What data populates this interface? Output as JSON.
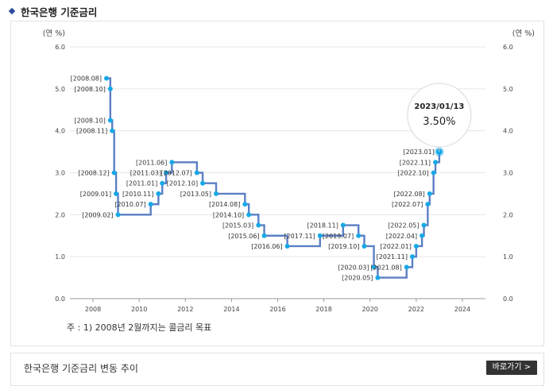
{
  "page": {
    "section_title": "한국은행 기준금리",
    "bottom_title": "한국은행 기준금리 변동 추이",
    "goto_button": "바로가기 >"
  },
  "chart_data": {
    "type": "line",
    "step": true,
    "left_axis_label": "(연 %)",
    "right_axis_label": "(연 %)",
    "ylim": [
      0.0,
      6.0
    ],
    "yticks": [
      "0.0",
      "1.0",
      "2.0",
      "3.0",
      "4.0",
      "5.0",
      "6.0"
    ],
    "xlim": [
      2007,
      2025
    ],
    "xticks": [
      "2008",
      "2010",
      "2012",
      "2014",
      "2016",
      "2018",
      "2020",
      "2022",
      "2024"
    ],
    "footnote": "주 : 1) 2008년 2월까지는 콜금리 목표",
    "series_color": "#5b7fc4",
    "point_color": "#17a9e6",
    "points": [
      {
        "date": "2008-08",
        "value": 5.25,
        "label": "[2008.08]"
      },
      {
        "date": "2008-10",
        "value": 5.0,
        "label": "[2008.10]"
      },
      {
        "date": "2008-10",
        "value": 4.25,
        "label": "[2008.10]"
      },
      {
        "date": "2008-11",
        "value": 4.0,
        "label": "[2008.11]"
      },
      {
        "date": "2008-12",
        "value": 3.0,
        "label": "[2008.12]"
      },
      {
        "date": "2009-01",
        "value": 2.5,
        "label": "[2009.01]"
      },
      {
        "date": "2009-02",
        "value": 2.0,
        "label": "[2009.02]"
      },
      {
        "date": "2010-07",
        "value": 2.25,
        "label": "[2010.07]"
      },
      {
        "date": "2010-11",
        "value": 2.5,
        "label": "[2010.11]"
      },
      {
        "date": "2011-01",
        "value": 2.75,
        "label": "[2011.01]"
      },
      {
        "date": "2011-03",
        "value": 3.0,
        "label": "[2011.03]"
      },
      {
        "date": "2011-06",
        "value": 3.25,
        "label": "[2011.06]"
      },
      {
        "date": "2012-07",
        "value": 3.0,
        "label": "[2012.07]"
      },
      {
        "date": "2012-10",
        "value": 2.75,
        "label": "[2012.10]"
      },
      {
        "date": "2013-05",
        "value": 2.5,
        "label": "[2013.05]"
      },
      {
        "date": "2014-08",
        "value": 2.25,
        "label": "[2014.08]"
      },
      {
        "date": "2014-10",
        "value": 2.0,
        "label": "[2014.10]"
      },
      {
        "date": "2015-03",
        "value": 1.75,
        "label": "[2015.03]"
      },
      {
        "date": "2015-06",
        "value": 1.5,
        "label": "[2015.06]"
      },
      {
        "date": "2016-06",
        "value": 1.25,
        "label": "[2016.06]"
      },
      {
        "date": "2017-11",
        "value": 1.5,
        "label": "[2017.11]"
      },
      {
        "date": "2018-11",
        "value": 1.75,
        "label": "[2018.11]"
      },
      {
        "date": "2019-07",
        "value": 1.5,
        "label": "[2019.07]"
      },
      {
        "date": "2019-10",
        "value": 1.25,
        "label": "[2019.10]"
      },
      {
        "date": "2020-03",
        "value": 0.75,
        "label": "[2020.03]"
      },
      {
        "date": "2020-05",
        "value": 0.5,
        "label": "[2020.05]"
      },
      {
        "date": "2021-08",
        "value": 0.75,
        "label": "[2021.08]"
      },
      {
        "date": "2021-11",
        "value": 1.0,
        "label": "[2021.11]"
      },
      {
        "date": "2022-01",
        "value": 1.25,
        "label": "[2022.01]"
      },
      {
        "date": "2022-04",
        "value": 1.5,
        "label": "[2022.04]"
      },
      {
        "date": "2022-05",
        "value": 1.75,
        "label": "[2022.05]"
      },
      {
        "date": "2022-07",
        "value": 2.25,
        "label": "[2022.07]"
      },
      {
        "date": "2022-08",
        "value": 2.5,
        "label": "[2022.08]"
      },
      {
        "date": "2022-10",
        "value": 3.0,
        "label": "[2022.10]"
      },
      {
        "date": "2022-11",
        "value": 3.25,
        "label": "[2022.11]"
      },
      {
        "date": "2023-01",
        "value": 3.5,
        "label": "[2023.01]"
      }
    ],
    "tooltip": {
      "date": "2023/01/13",
      "value": "3.50%"
    }
  }
}
